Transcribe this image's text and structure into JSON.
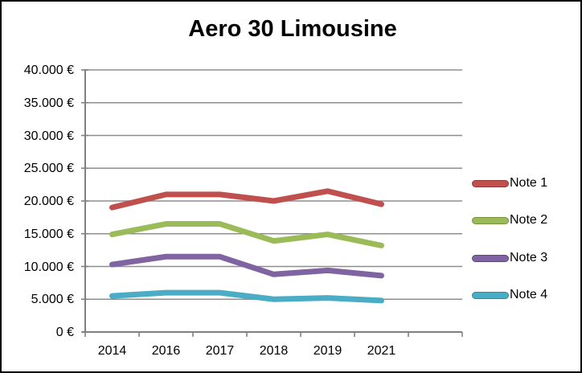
{
  "window": {
    "background": "#ffffff",
    "border_color": "#000000"
  },
  "chart_data": {
    "type": "line",
    "title": "Aero 30 Limousine",
    "categories": [
      "2014",
      "2016",
      "2017",
      "2018",
      "2019",
      "2021"
    ],
    "series": [
      {
        "name": "Note 1",
        "color": "#C0504D",
        "edge_color": "#943634",
        "values": [
          19000,
          21000,
          21000,
          20000,
          21500,
          19500
        ]
      },
      {
        "name": "Note 2",
        "color": "#9BBB59",
        "edge_color": "#77933C",
        "values": [
          14900,
          16500,
          16500,
          13900,
          14900,
          13200
        ]
      },
      {
        "name": "Note 3",
        "color": "#8064A2",
        "edge_color": "#60497A",
        "values": [
          10300,
          11500,
          11500,
          8800,
          9400,
          8600
        ]
      },
      {
        "name": "Note 4",
        "color": "#4BACC6",
        "edge_color": "#31859B",
        "values": [
          5500,
          6000,
          6000,
          5000,
          5200,
          4800
        ]
      }
    ],
    "y_axis": {
      "min": 0,
      "max": 40000,
      "step": 5000,
      "tick_labels": [
        "0 €",
        "5.000 €",
        "10.000 €",
        "15.000 €",
        "20.000 €",
        "25.000 €",
        "30.000 €",
        "35.000 €",
        "40.000 €"
      ]
    },
    "x_axis": {
      "slots": 7,
      "note": "rightmost slot has no label and no data points"
    },
    "legend_position": "right",
    "grid": true,
    "gridline_color": "#8e8e8e",
    "axis_color": "#808080",
    "text_color": "#000000",
    "line_width": 7
  }
}
